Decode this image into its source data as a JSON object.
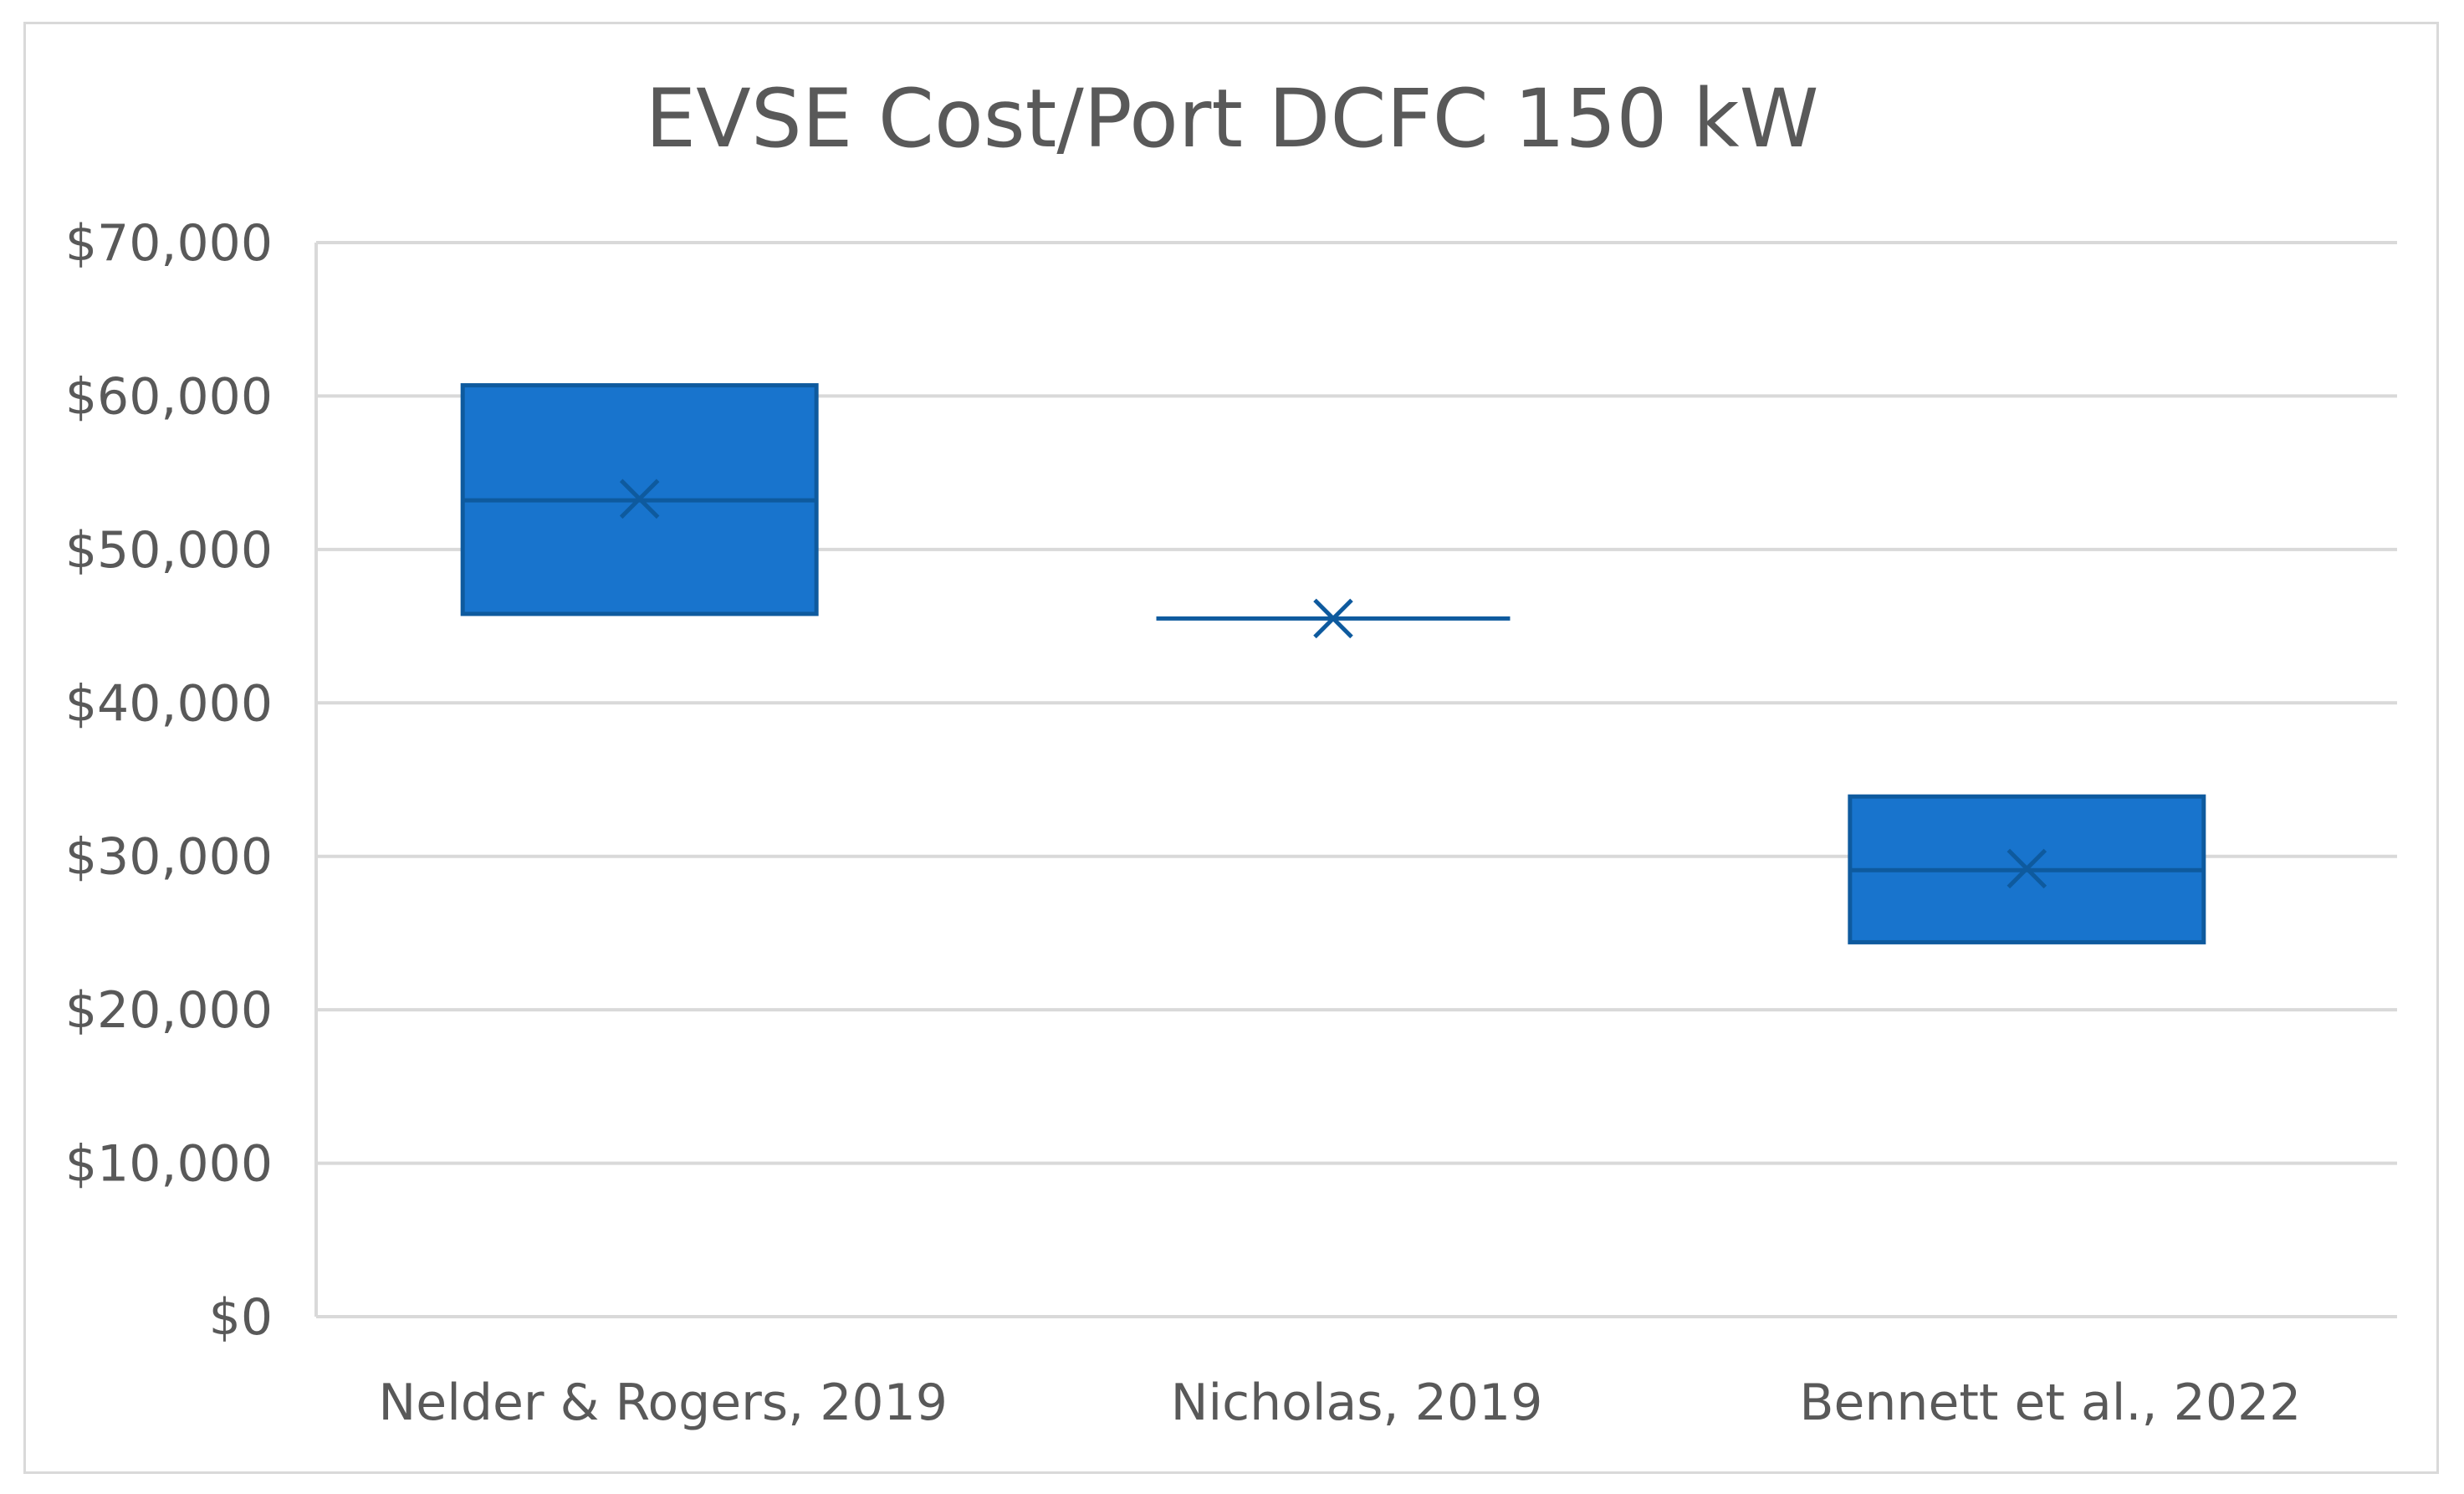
{
  "chart_data": {
    "type": "box",
    "title": "EVSE Cost/Port DCFC 150 kW",
    "xlabel": "",
    "ylabel": "",
    "ylim": [
      0,
      70000
    ],
    "yticks": [
      0,
      10000,
      20000,
      30000,
      40000,
      50000,
      60000,
      70000
    ],
    "ytick_labels": [
      "$0",
      "$10,000",
      "$20,000",
      "$30,000",
      "$40,000",
      "$50,000",
      "$60,000",
      "$70,000"
    ],
    "categories": [
      "Nelder & Rogers, 2019",
      "Nicholas, 2019",
      "Bennett et al., 2022"
    ],
    "series": [
      {
        "name": "Nelder & Rogers, 2019",
        "q1": 45800,
        "median": 53200,
        "q3": 60700,
        "mean": 53300
      },
      {
        "name": "Nicholas, 2019",
        "q1": 45500,
        "median": 45500,
        "q3": 45500,
        "mean": 45500
      },
      {
        "name": "Bennett et al., 2022",
        "q1": 24400,
        "median": 29100,
        "q3": 33900,
        "mean": 29200
      }
    ],
    "grid": true,
    "colors": {
      "box_fill": "#1874cd",
      "box_stroke": "#0e5a9e",
      "grid": "#d9d9d9",
      "text": "#595959"
    }
  }
}
